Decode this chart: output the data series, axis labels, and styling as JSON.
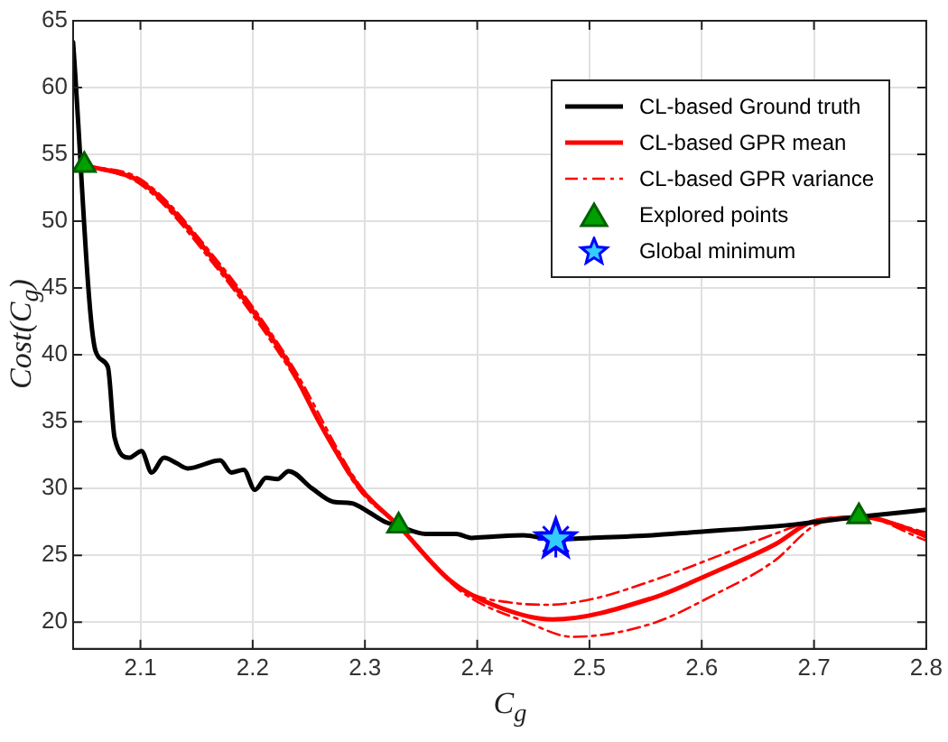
{
  "chart_data": {
    "type": "line",
    "xlabel": "C$_{g}$",
    "ylabel": "Cost(C$_{g}$)",
    "xlim": [
      2.04,
      2.8
    ],
    "xticks": [
      2.1,
      2.2,
      2.3,
      2.4,
      2.5,
      2.6,
      2.7,
      2.8
    ],
    "ylim": [
      18,
      65
    ],
    "yticks": [
      20,
      25,
      30,
      35,
      40,
      45,
      50,
      55,
      60,
      65
    ],
    "grid": true,
    "legend": "top right",
    "series": [
      {
        "name": "CL-based Ground truth",
        "color": "#000000",
        "line_style": "solid",
        "marker": "none",
        "x": [
          2.04,
          2.06,
          2.071,
          2.077,
          2.09,
          2.101,
          2.11,
          2.121,
          2.132,
          2.142,
          2.171,
          2.181,
          2.192,
          2.202,
          2.212,
          2.222,
          2.232,
          2.253,
          2.272,
          2.288,
          2.304,
          2.318,
          2.33,
          2.354,
          2.381,
          2.395,
          2.414,
          2.441,
          2.468,
          2.501,
          2.556,
          2.589,
          2.682,
          2.742,
          2.8
        ],
        "values": [
          63.4,
          40.3,
          39.1,
          33.8,
          32.3,
          32.8,
          31.2,
          32.3,
          31.9,
          31.5,
          32.1,
          31.2,
          31.4,
          29.9,
          30.8,
          30.7,
          31.3,
          30.0,
          29.0,
          28.9,
          28.2,
          27.5,
          27.2,
          26.6,
          26.6,
          26.3,
          26.4,
          26.5,
          26.2,
          26.3,
          26.5,
          26.7,
          27.3,
          27.9,
          28.4
        ]
      },
      {
        "name": "CL-based GPR mean",
        "color": "#ff0000",
        "line_style": "solid",
        "marker": "none",
        "x": [
          2.05,
          2.101,
          2.135,
          2.168,
          2.201,
          2.233,
          2.261,
          2.294,
          2.33,
          2.376,
          2.414,
          2.467,
          2.556,
          2.61,
          2.665,
          2.698,
          2.731,
          2.74,
          2.78,
          2.8
        ],
        "values": [
          54.2,
          52.9,
          50.2,
          46.8,
          43.2,
          39.2,
          34.7,
          30.2,
          27.2,
          23.1,
          21.3,
          20.2,
          21.8,
          23.7,
          25.8,
          27.5,
          27.8,
          27.9,
          27.1,
          26.4
        ]
      },
      {
        "name": "CL-based GPR variance",
        "color": "#ff0000",
        "line_style": "dashed",
        "marker": "none",
        "x": [
          2.05,
          2.101,
          2.168,
          2.233,
          2.294,
          2.33,
          2.384,
          2.436,
          2.463,
          2.501,
          2.556,
          2.61,
          2.665,
          2.7,
          2.74,
          2.8
        ],
        "values": [
          54.2,
          53.1,
          47.1,
          39.5,
          30.4,
          27.2,
          22.6,
          21.4,
          21.3,
          21.7,
          23.1,
          24.8,
          26.6,
          27.6,
          27.9,
          26.7
        ]
      },
      {
        "color": "#ff0000",
        "line_style": "dashed",
        "marker": "none",
        "x": [
          2.05,
          2.101,
          2.168,
          2.233,
          2.294,
          2.33,
          2.384,
          2.447,
          2.485,
          2.556,
          2.61,
          2.665,
          2.7,
          2.74,
          2.8
        ],
        "values": [
          54.2,
          52.7,
          46.5,
          38.9,
          30.0,
          27.2,
          22.4,
          19.9,
          18.9,
          19.9,
          22.0,
          24.6,
          27.2,
          27.9,
          26.1
        ]
      },
      {
        "name": "Explored points",
        "type": "scatter",
        "color": "#00a000",
        "marker": "triangle",
        "x": [
          2.05,
          2.33,
          2.74
        ],
        "values": [
          54.2,
          27.2,
          27.9
        ]
      },
      {
        "name": "Global minimum",
        "type": "scatter",
        "color": "#0000ff",
        "marker": "star",
        "x": [
          2.47
        ],
        "values": [
          26.2
        ]
      }
    ]
  }
}
